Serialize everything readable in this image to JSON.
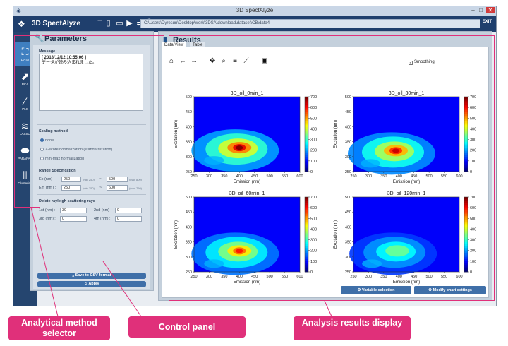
{
  "window": {
    "title": "3D SpectAlyze",
    "brand": "3D SpectAlyze",
    "path": "C:\\Users\\Dyresun\\Desktop\\work\\3DSA\\download\\dataset\\CB\\data4",
    "exit_label": "EXIT",
    "minimize_icon": "minimize-icon",
    "maximize_icon": "maximize-icon",
    "close_icon": "close-icon"
  },
  "toolbar": {
    "icons": [
      "folder-icon",
      "document-icon",
      "book-icon",
      "video-icon",
      "translate-icon",
      "info-icon"
    ]
  },
  "sidebar": {
    "items": [
      {
        "label": "DATA",
        "icon": "data-icon",
        "active": true
      },
      {
        "label": "PCA",
        "icon": "pca-icon"
      },
      {
        "label": "PLS",
        "icon": "pls-icon"
      },
      {
        "label": "LASSO",
        "icon": "lasso-icon"
      },
      {
        "label": "PARAFAC",
        "icon": "parafac-icon"
      },
      {
        "label": "Clustering",
        "icon": "clustering-icon"
      }
    ]
  },
  "params": {
    "title": "Parameters",
    "message_label": "Message",
    "message_line1": "[ 2018/12/12 10:55:06 ]",
    "message_line2": "データが読み込まれました。",
    "scaling_label": "Scaling method",
    "scaling_options": [
      "none",
      "Z-score normalization (standardization)",
      "min-max normalization"
    ],
    "scaling_selected": "none",
    "range_label": "Range Specification",
    "ex_label": "Ex (nm) :",
    "ex_min": "250",
    "ex_min_hint": "(min 250)",
    "ex_max": "500",
    "ex_max_hint": "(max 800)",
    "em_label": "Em (nm) :",
    "em_min": "250",
    "em_min_hint": "(min 250)",
    "em_max": "600",
    "em_max_hint": "(max 750)",
    "range_sep": "~",
    "rayleigh_label": "Delete rayleigh scattering rays",
    "r1_label": "1st (nm) :",
    "r1_value": "30",
    "r2_label": "2nd (nm) :",
    "r2_value": "0",
    "r3_label": "3rd (nm) :",
    "r3_value": "0",
    "r4_label": "4th (nm) :",
    "r4_value": "0",
    "save_label": "Save to CSV format",
    "apply_label": "Apply"
  },
  "results": {
    "title": "Results",
    "tabs": [
      "Data View",
      "Table"
    ],
    "active_tab": "Data View",
    "plot_toolbar_icons": [
      "home-icon",
      "back-arrow-icon",
      "forward-arrow-icon",
      "pan-icon",
      "zoom-icon",
      "configure-subplots-icon",
      "edit-curve-icon",
      "save-icon"
    ],
    "smoothing_label": "Smoothing",
    "smoothing_checked": true,
    "variable_selection_label": "Variable selection",
    "modify_chart_label": "Modify chart settings"
  },
  "chart_data": [
    {
      "type": "heatmap",
      "title": "3D_oil_0min_1",
      "xlabel": "Emission (nm)",
      "ylabel": "Excitation (nm)",
      "x_ticks": [
        250,
        300,
        350,
        400,
        450,
        500,
        550,
        600
      ],
      "y_ticks": [
        250,
        300,
        350,
        400,
        450,
        500
      ],
      "xlim": [
        250,
        600
      ],
      "ylim": [
        250,
        500
      ],
      "colorbar_ticks": [
        0,
        100,
        200,
        300,
        400,
        500,
        600,
        700
      ],
      "peak": {
        "emission": 400,
        "excitation": 330,
        "intensity": 700
      }
    },
    {
      "type": "heatmap",
      "title": "3D_oil_30min_1",
      "xlabel": "Emission (nm)",
      "ylabel": "Excitation (nm)",
      "x_ticks": [
        250,
        300,
        350,
        400,
        450,
        500,
        550,
        600
      ],
      "y_ticks": [
        250,
        300,
        350,
        400,
        450,
        500
      ],
      "xlim": [
        250,
        600
      ],
      "ylim": [
        250,
        500
      ],
      "colorbar_ticks": [
        0,
        100,
        200,
        300,
        400,
        500,
        600,
        700
      ],
      "peak": {
        "emission": 390,
        "excitation": 320,
        "intensity": 650
      }
    },
    {
      "type": "heatmap",
      "title": "3D_oil_60min_1",
      "xlabel": "Emission (nm)",
      "ylabel": "Excitation (nm)",
      "x_ticks": [
        250,
        300,
        350,
        400,
        450,
        500,
        550,
        600
      ],
      "y_ticks": [
        250,
        300,
        350,
        400,
        450,
        500
      ],
      "xlim": [
        250,
        600
      ],
      "ylim": [
        250,
        500
      ],
      "colorbar_ticks": [
        0,
        100,
        200,
        300,
        400,
        500,
        600,
        700
      ],
      "peak": {
        "emission": 400,
        "excitation": 320,
        "intensity": 600
      }
    },
    {
      "type": "heatmap",
      "title": "3D_oil_120min_1",
      "xlabel": "Emission (nm)",
      "ylabel": "Excitation (nm)",
      "x_ticks": [
        250,
        300,
        350,
        400,
        450,
        500,
        550,
        600
      ],
      "y_ticks": [
        250,
        300,
        350,
        400,
        450,
        500
      ],
      "xlim": [
        250,
        600
      ],
      "ylim": [
        250,
        500
      ],
      "colorbar_ticks": [
        0,
        100,
        200,
        300,
        400,
        500,
        600,
        700
      ],
      "peak": {
        "emission": 395,
        "excitation": 320,
        "intensity": 450
      }
    }
  ],
  "callouts": {
    "method_selector": "Analytical method selector",
    "control_panel": "Control panel",
    "results_display": "Analysis results display"
  },
  "colors": {
    "accent": "#e0307a",
    "toolbar": "#1f3f6d",
    "sidebar": "#25456f",
    "button": "#3f6fa8"
  }
}
